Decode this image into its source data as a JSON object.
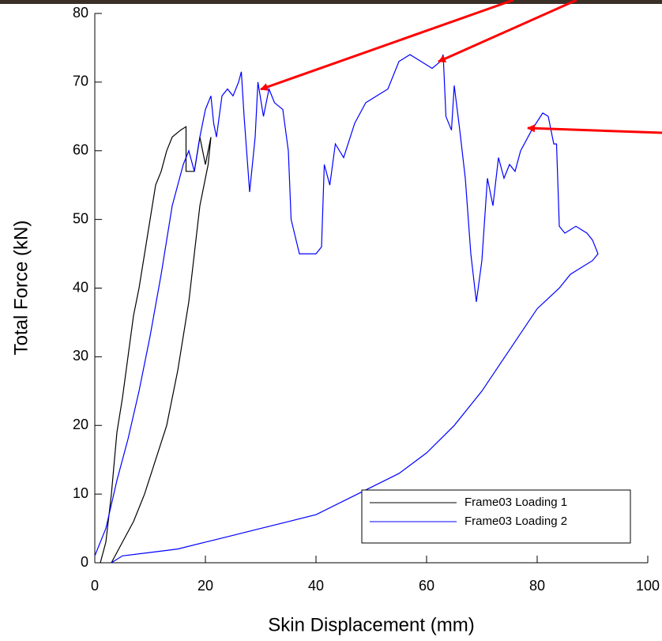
{
  "chart_data": {
    "type": "line",
    "xlabel": "Skin Displacement (mm)",
    "ylabel": "Total Force (kN)",
    "xlim": [
      0,
      100
    ],
    "xticks": [
      0,
      20,
      40,
      60,
      80,
      100
    ],
    "ylim": [
      0,
      80
    ],
    "yticks": [
      0,
      10,
      20,
      30,
      40,
      50,
      60,
      70,
      80
    ],
    "legend": "lower right",
    "series": [
      {
        "name": "Frame03 Loading 1",
        "color": "#000000",
        "x": [
          1,
          2,
          3,
          4,
          5,
          6,
          7,
          8,
          9,
          10,
          11,
          12,
          13,
          14,
          15.5,
          16.5,
          16.5,
          18,
          19,
          20,
          21,
          20.5,
          19,
          18,
          17,
          15,
          13,
          11,
          9,
          7,
          5,
          3
        ],
        "values": [
          0,
          3,
          10,
          19,
          24,
          30,
          36,
          40,
          45,
          50,
          55,
          57,
          60,
          62,
          63,
          63.5,
          57,
          57,
          62,
          58,
          62,
          58,
          52,
          45,
          38,
          28,
          20,
          15,
          10,
          6,
          3,
          0
        ]
      },
      {
        "name": "Frame03 Loading 2",
        "color": "#0000ff",
        "x": [
          0,
          2,
          4,
          6,
          8,
          10,
          12,
          14,
          16,
          17,
          18,
          19,
          20,
          21,
          21.5,
          22,
          23,
          24,
          25,
          26,
          26.5,
          27,
          28,
          29,
          29.5,
          30.5,
          31.5,
          32.5,
          34,
          35,
          35.5,
          37,
          40,
          41,
          41.5,
          42.5,
          43.5,
          45,
          47,
          49,
          51,
          53,
          55,
          57,
          59,
          61,
          62.5,
          63,
          63.5,
          64.5,
          65,
          66,
          67,
          68,
          69,
          70,
          71,
          72,
          73,
          74,
          75,
          76,
          77,
          79,
          81,
          82,
          83,
          83.5,
          84,
          85,
          87,
          89,
          90,
          91,
          90,
          88,
          86,
          84,
          80,
          75,
          70,
          65,
          60,
          55,
          50,
          45,
          40,
          35,
          30,
          25,
          20,
          15,
          10,
          5,
          3
        ],
        "values": [
          1,
          5,
          12,
          18,
          25,
          33,
          42,
          52,
          58,
          60,
          57,
          62,
          66,
          68,
          64,
          62,
          68,
          69,
          68,
          70,
          71.5,
          65,
          54,
          62,
          70,
          65,
          69,
          67,
          66,
          60,
          50,
          45,
          45,
          46,
          58,
          55,
          61,
          59,
          64,
          67,
          68,
          69,
          73,
          74,
          73,
          72,
          73,
          74,
          65,
          63,
          69.5,
          63,
          56,
          45,
          38,
          44,
          56,
          52,
          59,
          56,
          58,
          57,
          60,
          63,
          65.5,
          65,
          61,
          61,
          49,
          48,
          49,
          48,
          47,
          45,
          44,
          43,
          42,
          40,
          37,
          31,
          25,
          20,
          16,
          13,
          11,
          9,
          7,
          6,
          5,
          4,
          3,
          2,
          1.5,
          1,
          0
        ]
      }
    ]
  }
}
